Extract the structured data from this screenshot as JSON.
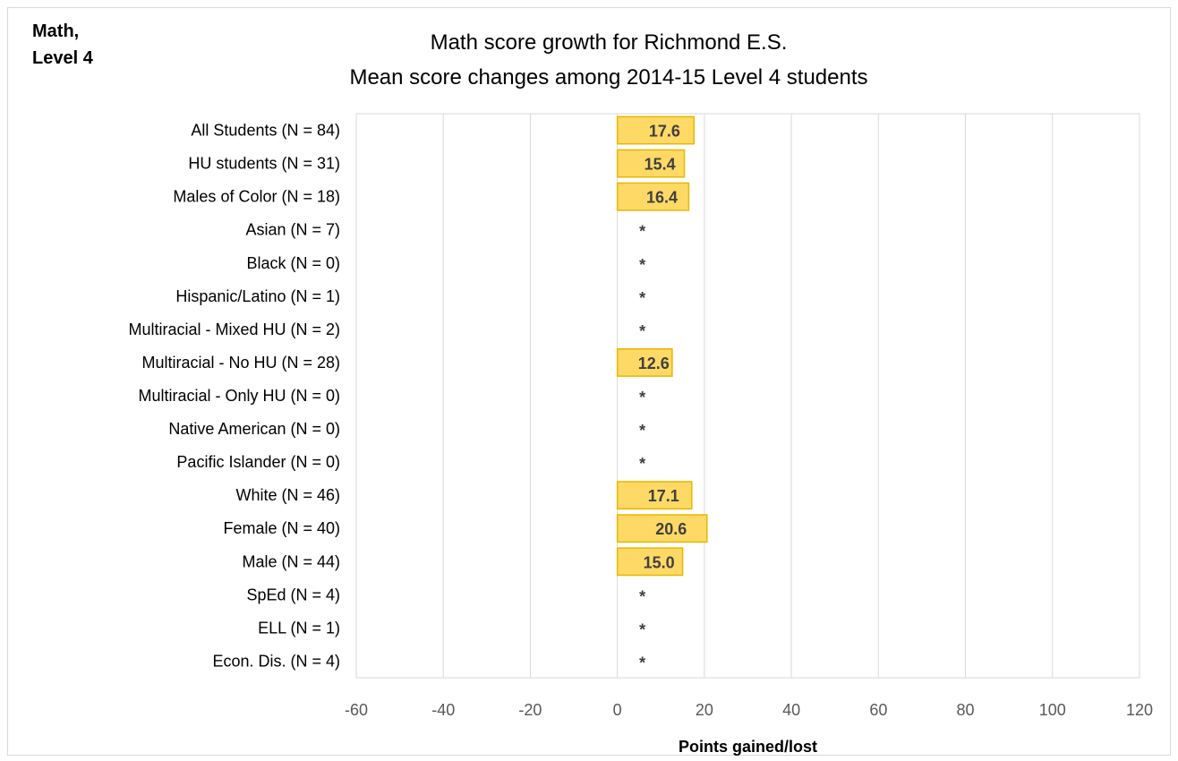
{
  "corner_label": [
    "Math,",
    "Level 4"
  ],
  "chart_data": {
    "type": "bar",
    "orientation": "horizontal",
    "title": "Math score growth for Richmond E.S.",
    "subtitle": "Mean score changes among 2014-15 Level 4 students",
    "xlabel": "Points gained/lost",
    "ylabel": "",
    "xlim": [
      -60,
      120
    ],
    "xticks": [
      "-60",
      "-40",
      "-20",
      "0",
      "20",
      "40",
      "60",
      "80",
      "100",
      "120"
    ],
    "grid": true,
    "bar_color": "#ffd966",
    "bar_edge_color": "#e6b800",
    "suppressed_marker": "*",
    "categories": [
      "All Students (N = 84)",
      "HU students (N = 31)",
      "Males of Color (N = 18)",
      "Asian (N = 7)",
      "Black (N = 0)",
      "Hispanic/Latino (N = 1)",
      "Multiracial - Mixed HU (N = 2)",
      "Multiracial - No HU (N = 28)",
      "Multiracial - Only HU (N = 0)",
      "Native American (N = 0)",
      "Pacific Islander (N = 0)",
      "White (N = 46)",
      "Female (N = 40)",
      "Male (N = 44)",
      "SpEd (N = 4)",
      "ELL (N = 1)",
      "Econ. Dis. (N = 4)"
    ],
    "values": [
      17.6,
      15.4,
      16.4,
      null,
      null,
      null,
      null,
      12.6,
      null,
      null,
      null,
      17.1,
      20.6,
      15.0,
      null,
      null,
      null
    ],
    "value_labels": [
      "17.6",
      "15.4",
      "16.4",
      "*",
      "*",
      "*",
      "*",
      "12.6",
      "*",
      "*",
      "*",
      "17.1",
      "20.6",
      "15.0",
      "*",
      "*",
      "*"
    ]
  }
}
